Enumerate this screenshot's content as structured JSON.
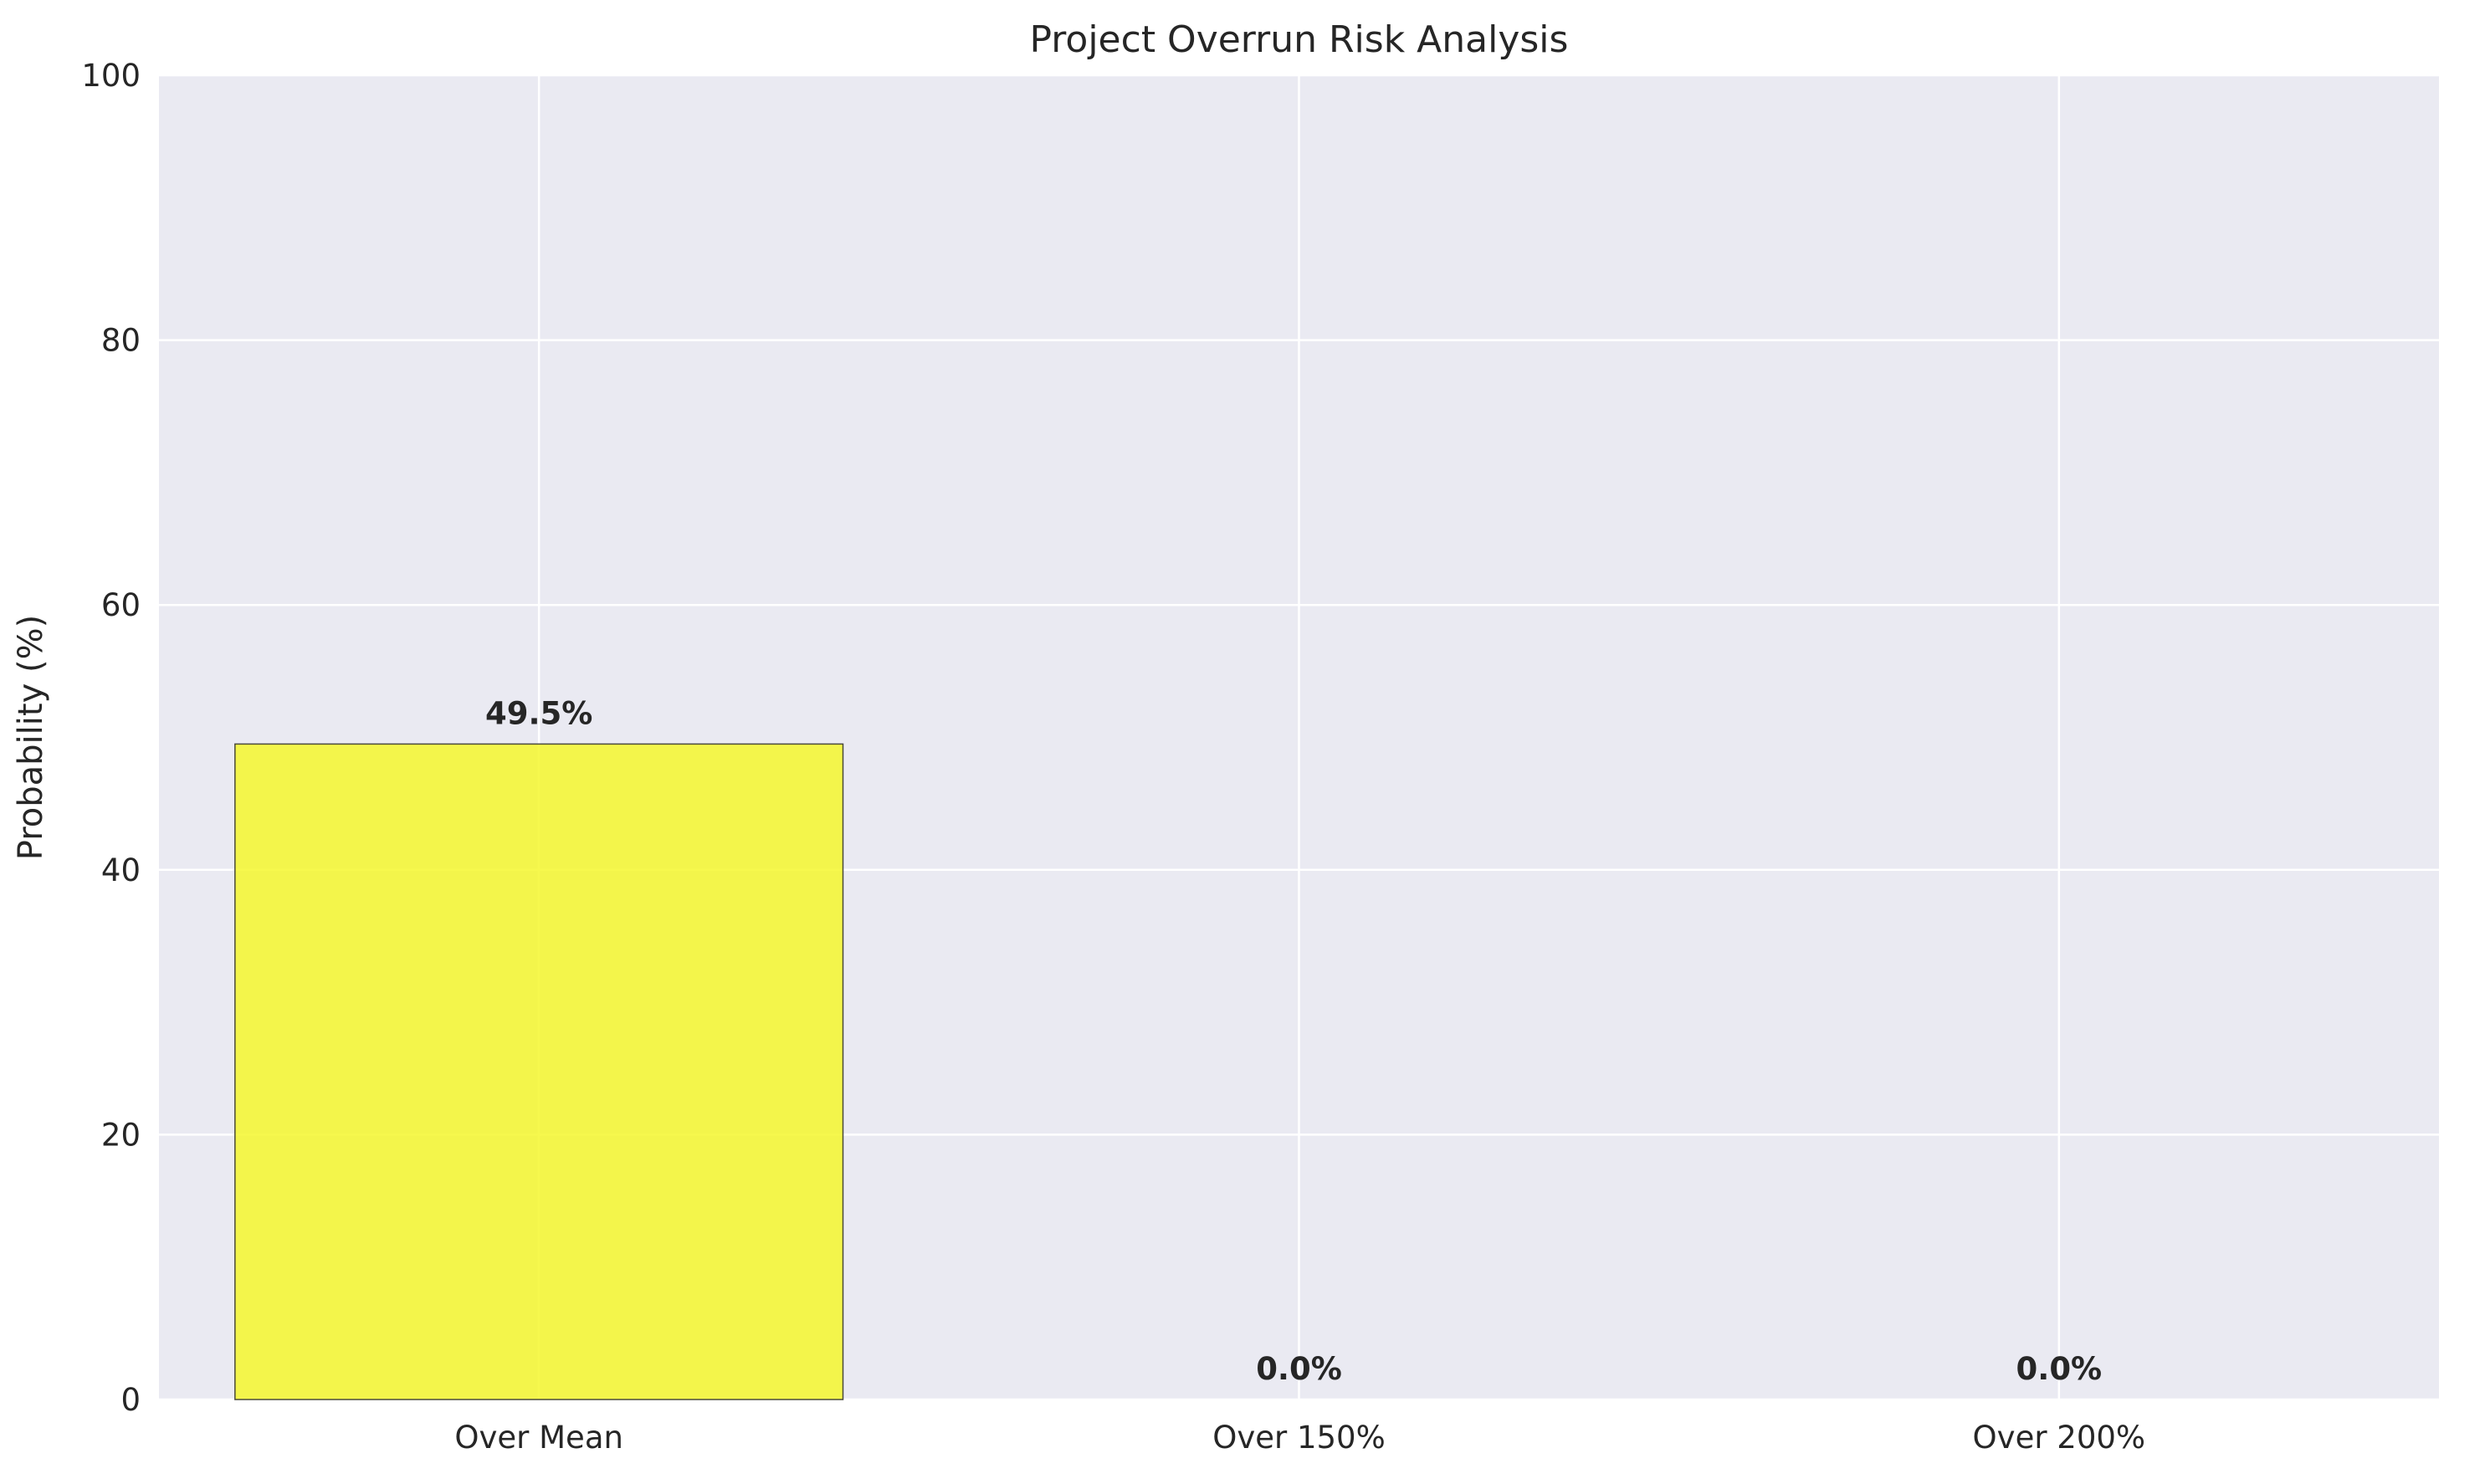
{
  "chart_data": {
    "type": "bar",
    "title": "Project Overrun Risk Analysis",
    "xlabel": "",
    "ylabel": "Probability (%)",
    "categories": [
      "Over Mean",
      "Over 150%",
      "Over 200%"
    ],
    "values": [
      49.5,
      0.0,
      0.0
    ],
    "value_labels": [
      "49.5%",
      "0.0%",
      "0.0%"
    ],
    "ylim": [
      0,
      100
    ],
    "yticks": [
      0,
      20,
      40,
      60,
      80,
      100
    ],
    "ytick_labels": [
      "0",
      "20",
      "40",
      "60",
      "80",
      "100"
    ],
    "grid": true,
    "legend": "none",
    "colors": {
      "plot_background": "#eaeaf2",
      "grid": "#ffffff",
      "bar_fill": "#f5f72e",
      "bar_edge": "#4a4a3a",
      "text": "#262626"
    }
  }
}
